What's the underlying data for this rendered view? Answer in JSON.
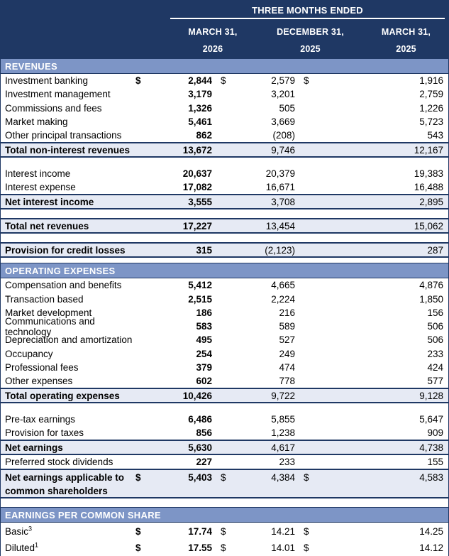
{
  "colors": {
    "navy": "#1F3864",
    "section_bar": "#7D95C6",
    "total_bg": "#E6EAF4",
    "header_text": "#FFFFFF",
    "body_text": "#000000"
  },
  "header": {
    "spanner": "THREE MONTHS ENDED",
    "columns": [
      {
        "month": "MARCH 31,",
        "year": "2026"
      },
      {
        "month": "DECEMBER 31,",
        "year": "2025"
      },
      {
        "month": "MARCH 31,",
        "year": "2025"
      }
    ]
  },
  "table": {
    "rows": [
      {
        "type": "section",
        "label": "REVENUES"
      },
      {
        "type": "data",
        "label": "Investment banking",
        "dollar": true,
        "values": [
          "2,844",
          "2,579",
          "1,916"
        ]
      },
      {
        "type": "data",
        "label": "Investment management",
        "values": [
          "3,179",
          "3,201",
          "2,759"
        ]
      },
      {
        "type": "data",
        "label": "Commissions and fees",
        "values": [
          "1,326",
          "505",
          "1,226"
        ]
      },
      {
        "type": "data",
        "label": "Market making",
        "values": [
          "5,461",
          "3,669",
          "5,723"
        ]
      },
      {
        "type": "data",
        "label": "Other principal transactions",
        "values": [
          "862",
          "(208)",
          "543"
        ]
      },
      {
        "type": "total",
        "label": "Total non-interest revenues",
        "values": [
          "13,672",
          "9,746",
          "12,167"
        ]
      },
      {
        "type": "spacer"
      },
      {
        "type": "data",
        "label": "Interest income",
        "values": [
          "20,637",
          "20,379",
          "19,383"
        ]
      },
      {
        "type": "data",
        "label": "Interest expense",
        "values": [
          "17,082",
          "16,671",
          "16,488"
        ]
      },
      {
        "type": "total",
        "label": "Net interest income",
        "values": [
          "3,555",
          "3,708",
          "2,895"
        ]
      },
      {
        "type": "spacer"
      },
      {
        "type": "total",
        "label": "Total net revenues",
        "values": [
          "17,227",
          "13,454",
          "15,062"
        ]
      },
      {
        "type": "spacer"
      },
      {
        "type": "total",
        "label": "Provision for credit losses",
        "values": [
          "315",
          "(2,123)",
          "287"
        ]
      },
      {
        "type": "spacer",
        "size": "small"
      },
      {
        "type": "section",
        "label": "OPERATING EXPENSES"
      },
      {
        "type": "data",
        "label": "Compensation and benefits",
        "values": [
          "5,412",
          "4,665",
          "4,876"
        ]
      },
      {
        "type": "data",
        "label": "Transaction based",
        "values": [
          "2,515",
          "2,224",
          "1,850"
        ]
      },
      {
        "type": "data",
        "label": "Market development",
        "values": [
          "186",
          "216",
          "156"
        ]
      },
      {
        "type": "data",
        "label": "Communications and technology",
        "values": [
          "583",
          "589",
          "506"
        ]
      },
      {
        "type": "data",
        "label": "Depreciation and amortization",
        "values": [
          "495",
          "527",
          "506"
        ]
      },
      {
        "type": "data",
        "label": "Occupancy",
        "values": [
          "254",
          "249",
          "233"
        ]
      },
      {
        "type": "data",
        "label": "Professional fees",
        "values": [
          "379",
          "474",
          "424"
        ]
      },
      {
        "type": "data",
        "label": "Other expenses",
        "values": [
          "602",
          "778",
          "577"
        ]
      },
      {
        "type": "total",
        "label": "Total operating expenses",
        "values": [
          "10,426",
          "9,722",
          "9,128"
        ]
      },
      {
        "type": "spacer"
      },
      {
        "type": "data",
        "label": "Pre-tax earnings",
        "values": [
          "6,486",
          "5,855",
          "5,647"
        ]
      },
      {
        "type": "data",
        "label": "Provision for taxes",
        "values": [
          "856",
          "1,238",
          "909"
        ]
      },
      {
        "type": "total",
        "label": "Net earnings",
        "values": [
          "5,630",
          "4,617",
          "4,738"
        ]
      },
      {
        "type": "data",
        "label": "Preferred stock dividends",
        "values": [
          "227",
          "233",
          "155"
        ]
      },
      {
        "type": "total",
        "label": "Net earnings applicable to common shareholders",
        "dollar": true,
        "twoline": true,
        "values": [
          "5,403",
          "4,384",
          "4,583"
        ]
      },
      {
        "type": "spacer"
      },
      {
        "type": "section",
        "label": "EARNINGS PER COMMON SHARE"
      },
      {
        "type": "data",
        "label": "Basic",
        "sup": "3",
        "dollar": true,
        "values": [
          "17.74",
          "14.21",
          "14.25"
        ]
      },
      {
        "type": "data",
        "label": "Diluted",
        "sup": "1",
        "dollar": true,
        "values": [
          "17.55",
          "14.01",
          "14.12"
        ]
      }
    ]
  }
}
